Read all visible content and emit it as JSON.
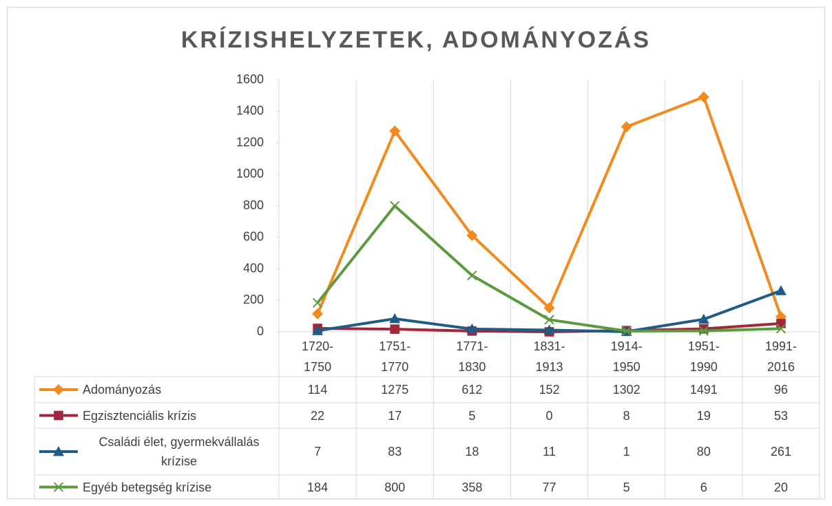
{
  "chart_data": {
    "type": "line",
    "title": "KRÍZISHELYZETEK, ADOMÁNYOZÁS",
    "categories": [
      "1720-1750",
      "1751-1770",
      "1771-1830",
      "1831-1913",
      "1914-1950",
      "1951-1990",
      "1991-2016"
    ],
    "series": [
      {
        "name": "Adományozás",
        "color": "#F28A1E",
        "marker": "diamond",
        "values": [
          114,
          1275,
          612,
          152,
          1302,
          1491,
          96
        ]
      },
      {
        "name": "Egzisztenciális krízis",
        "color": "#A0283A",
        "marker": "square",
        "values": [
          22,
          17,
          5,
          0,
          8,
          19,
          53
        ]
      },
      {
        "name": "Családi élet, gyermekvállalás krízise",
        "color": "#1F5C87",
        "marker": "triangle",
        "values": [
          7,
          83,
          18,
          11,
          1,
          80,
          261
        ]
      },
      {
        "name": "Egyéb betegség krízise",
        "color": "#5B9A3E",
        "marker": "x",
        "values": [
          184,
          800,
          358,
          77,
          5,
          6,
          20
        ]
      }
    ],
    "ylim": [
      0,
      1600
    ],
    "yticks": [
      0,
      200,
      400,
      600,
      800,
      1000,
      1200,
      1400,
      1600
    ],
    "grid": true,
    "data_table": true
  }
}
